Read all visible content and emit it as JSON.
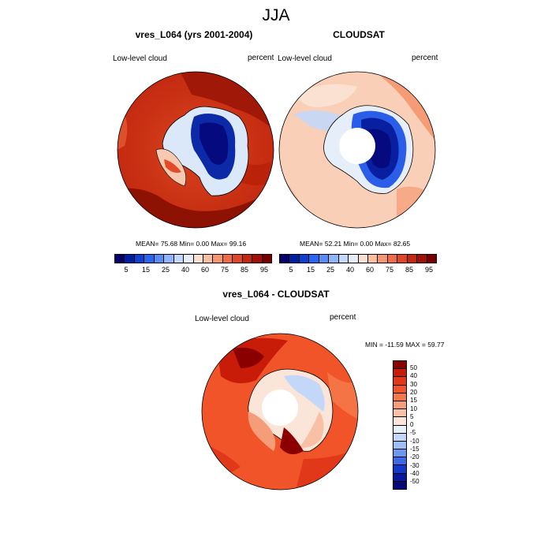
{
  "figure_title": "JJA",
  "panels": [
    {
      "title": "vres_L064 (yrs 2001-2004)",
      "left_label": "Low-level cloud",
      "right_label": "percent",
      "stats": "MEAN=  75.68  Min=   0.00  Max=  99.16"
    },
    {
      "title": "CLOUDSAT",
      "left_label": "Low-level cloud",
      "right_label": "percent",
      "stats": "MEAN=  52.21  Min=   0.00  Max=  82.65"
    },
    {
      "title": "vres_L064 - CLOUDSAT",
      "left_label": "Low-level cloud",
      "right_label": "percent",
      "stats": "MIN = -11.59 MAX =  59.77"
    }
  ],
  "colorbar_abs": {
    "tick_labels": [
      "5",
      "15",
      "25",
      "40",
      "60",
      "75",
      "85",
      "95"
    ],
    "colors": [
      "#08006a",
      "#0020a0",
      "#1040d0",
      "#2a66f0",
      "#5a8cf5",
      "#8fb4f7",
      "#c3d7f8",
      "#e6eef9",
      "#fbe0d0",
      "#f9bfa0",
      "#f49670",
      "#ee6c48",
      "#e04628",
      "#c42810",
      "#a01208",
      "#7a0000"
    ]
  },
  "colorbar_diff": {
    "tick_labels": [
      "50",
      "40",
      "30",
      "20",
      "15",
      "10",
      "5",
      "0",
      "-5",
      "-10",
      "-15",
      "-20",
      "-30",
      "-40",
      "-50"
    ],
    "colors": [
      "#8a0000",
      "#c81c08",
      "#e03818",
      "#f05428",
      "#f47848",
      "#f59c78",
      "#f8c0a4",
      "#fbe4d8",
      "#e8f0fa",
      "#c3d7f8",
      "#9ebef6",
      "#6d98f2",
      "#3a6ae8",
      "#1438c8",
      "#0818a0",
      "#040878"
    ]
  }
}
